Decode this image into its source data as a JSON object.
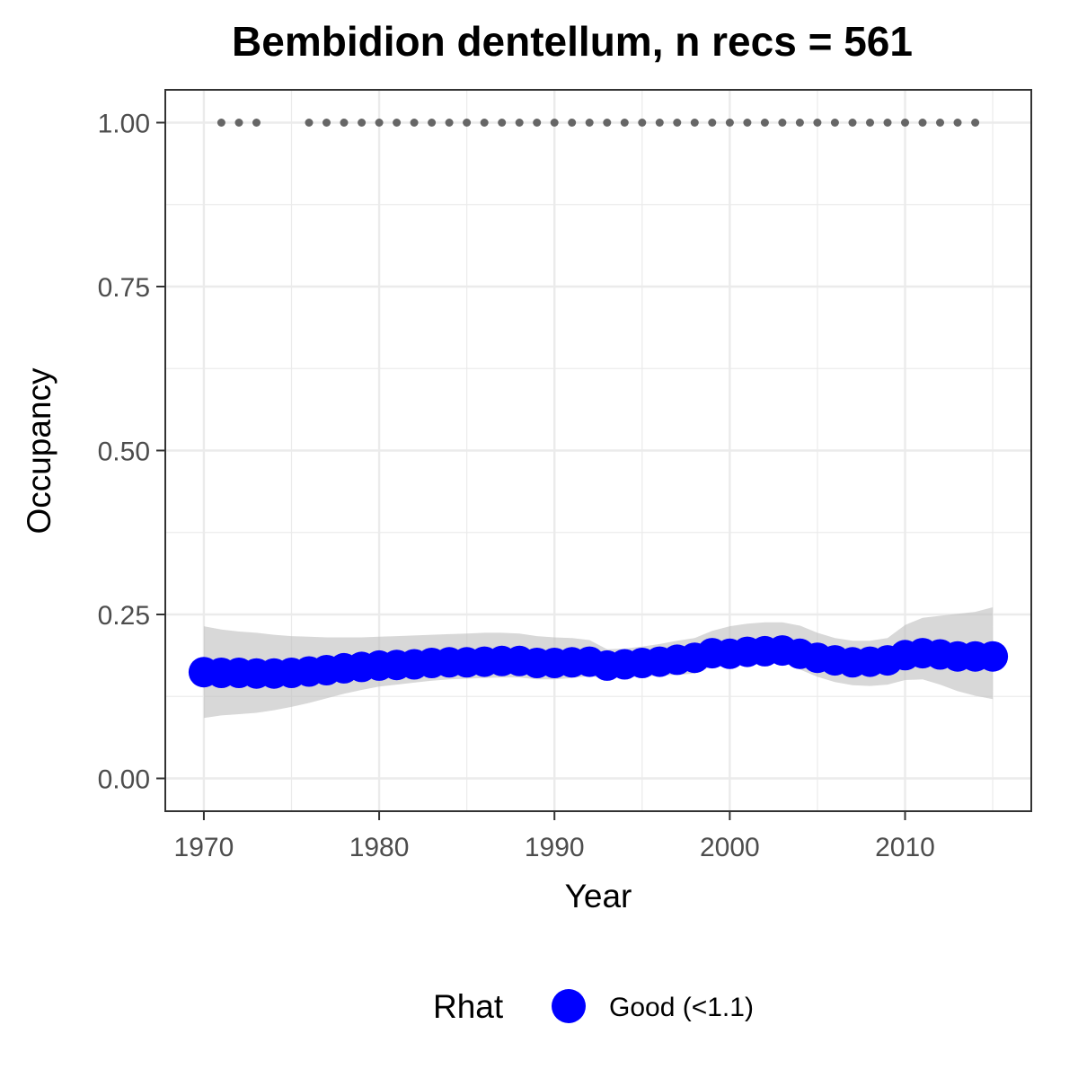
{
  "chart_data": {
    "type": "line",
    "title": "Bembidion dentellum, n recs = 561",
    "xlabel": "Year",
    "ylabel": "Occupancy",
    "xlim": [
      1967.8,
      2017.2
    ],
    "ylim": [
      -0.05,
      1.05
    ],
    "x_ticks": [
      1970,
      1980,
      1990,
      2000,
      2010
    ],
    "x_tick_labels": [
      "1970",
      "1980",
      "1990",
      "2000",
      "2010"
    ],
    "y_ticks": [
      0,
      0.25,
      0.5,
      0.75,
      1.0
    ],
    "y_tick_labels": [
      "0.00",
      "0.25",
      "0.50",
      "0.75",
      "1.00"
    ],
    "grid": true,
    "legend": {
      "title": "Rhat",
      "position": "bottom",
      "entries": [
        {
          "label": "Good (<1.1)",
          "color": "#0000ff"
        }
      ]
    },
    "colors": {
      "series": "#0000ff",
      "ribbon": "#bebebe",
      "records": "#666666",
      "panel_border": "#333333",
      "grid": "#ebebeb"
    },
    "series": [
      {
        "name": "Good (<1.1)",
        "x": [
          1970,
          1971,
          1972,
          1973,
          1974,
          1975,
          1976,
          1977,
          1978,
          1979,
          1980,
          1981,
          1982,
          1983,
          1984,
          1985,
          1986,
          1987,
          1988,
          1989,
          1990,
          1991,
          1992,
          1993,
          1994,
          1995,
          1996,
          1997,
          1998,
          1999,
          2000,
          2001,
          2002,
          2003,
          2004,
          2005,
          2006,
          2007,
          2008,
          2009,
          2010,
          2011,
          2012,
          2013,
          2014,
          2015
        ],
        "mean": [
          0.162,
          0.161,
          0.161,
          0.16,
          0.16,
          0.161,
          0.163,
          0.165,
          0.168,
          0.17,
          0.172,
          0.173,
          0.174,
          0.176,
          0.177,
          0.177,
          0.178,
          0.179,
          0.179,
          0.176,
          0.176,
          0.177,
          0.178,
          0.172,
          0.174,
          0.176,
          0.178,
          0.181,
          0.184,
          0.191,
          0.19,
          0.193,
          0.194,
          0.195,
          0.19,
          0.184,
          0.18,
          0.177,
          0.178,
          0.18,
          0.188,
          0.191,
          0.189,
          0.186,
          0.186,
          0.186
        ],
        "lower": [
          0.092,
          0.096,
          0.098,
          0.1,
          0.104,
          0.109,
          0.115,
          0.122,
          0.129,
          0.135,
          0.14,
          0.143,
          0.146,
          0.149,
          0.151,
          0.152,
          0.153,
          0.154,
          0.154,
          0.151,
          0.151,
          0.153,
          0.156,
          0.152,
          0.154,
          0.155,
          0.157,
          0.158,
          0.16,
          0.171,
          0.171,
          0.174,
          0.176,
          0.177,
          0.166,
          0.155,
          0.147,
          0.142,
          0.141,
          0.143,
          0.15,
          0.151,
          0.143,
          0.133,
          0.126,
          0.121
        ],
        "upper": [
          0.232,
          0.227,
          0.224,
          0.222,
          0.219,
          0.217,
          0.216,
          0.215,
          0.215,
          0.215,
          0.216,
          0.217,
          0.218,
          0.219,
          0.22,
          0.221,
          0.222,
          0.222,
          0.221,
          0.217,
          0.215,
          0.214,
          0.211,
          0.197,
          0.198,
          0.201,
          0.205,
          0.21,
          0.214,
          0.225,
          0.232,
          0.236,
          0.238,
          0.238,
          0.233,
          0.222,
          0.214,
          0.21,
          0.21,
          0.214,
          0.234,
          0.245,
          0.248,
          0.251,
          0.254,
          0.261
        ]
      }
    ],
    "records": {
      "y": 1.0,
      "x": [
        1971,
        1972,
        1973,
        1976,
        1977,
        1978,
        1979,
        1980,
        1981,
        1982,
        1983,
        1984,
        1985,
        1986,
        1987,
        1988,
        1989,
        1990,
        1991,
        1992,
        1993,
        1994,
        1995,
        1996,
        1997,
        1998,
        1999,
        2000,
        2001,
        2002,
        2003,
        2004,
        2005,
        2006,
        2007,
        2008,
        2009,
        2010,
        2011,
        2012,
        2013,
        2014
      ]
    }
  }
}
